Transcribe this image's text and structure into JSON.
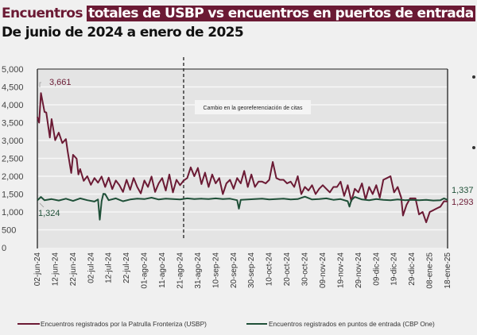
{
  "header": {
    "title_part1": "Encuentros",
    "title_part2": "totales de USBP vs encuentros en puertos de entrada",
    "subtitle": "De junio de 2024 a enero de 2025"
  },
  "colors": {
    "usbp": "#6b1a34",
    "cbp_one": "#1f5038",
    "highlight": "#6b1a34",
    "plot_bg": "#e4e4e4"
  },
  "chart_data": {
    "type": "line",
    "title": "Encuentros totales de USBP vs encuentros en puertos de entrada",
    "subtitle": "De junio de 2024 a enero de 2025",
    "ylim": [
      0,
      5000
    ],
    "yticks": [
      "0",
      "500",
      "1,000",
      "1,500",
      "2,000",
      "2,500",
      "3,000",
      "3,500",
      "4,000",
      "4,500",
      "5,000"
    ],
    "xlim": [
      "2024-06-02",
      "2025-01-18"
    ],
    "xticks": [
      "02-jun-24",
      "12-jun-24",
      "22-jun-24",
      "02-jul-24",
      "12-jul-24",
      "22-jul-24",
      "01-ago-24",
      "11-ago-24",
      "21-ago-24",
      "31-ago-24",
      "10-sep-24",
      "20-sep-24",
      "30-sep-24",
      "10-oct-24",
      "20-oct-24",
      "30-oct-24",
      "09-nov-24",
      "19-nov-24",
      "29-nov-24",
      "09-dic-24",
      "19-dic-24",
      "29-dic-24",
      "08-ene-25",
      "18-ene-25"
    ],
    "grid": true,
    "legend_position": "bottom",
    "annotation": {
      "text": "Cambio en la georeferenciación de citas",
      "date": "2024-08-23"
    },
    "data_labels": {
      "usbp_start": "3,661",
      "cbp_start": "1,324",
      "cbp_end": "1,337",
      "usbp_end": "1,293"
    },
    "series": [
      {
        "name": "Encuentros registrados por la Patrulla Fronteriza (USBP)",
        "points": [
          [
            "2024-06-02",
            3661
          ],
          [
            "2024-06-03",
            3500
          ],
          [
            "2024-06-04",
            4330
          ],
          [
            "2024-06-06",
            3800
          ],
          [
            "2024-06-07",
            3785
          ],
          [
            "2024-06-09",
            3085
          ],
          [
            "2024-06-10",
            3600
          ],
          [
            "2024-06-12",
            3010
          ],
          [
            "2024-06-14",
            3220
          ],
          [
            "2024-06-16",
            2930
          ],
          [
            "2024-06-18",
            3040
          ],
          [
            "2024-06-19",
            2700
          ],
          [
            "2024-06-21",
            2090
          ],
          [
            "2024-06-22",
            2600
          ],
          [
            "2024-06-24",
            2490
          ],
          [
            "2024-06-25",
            2050
          ],
          [
            "2024-06-26",
            2200
          ],
          [
            "2024-06-28",
            1870
          ],
          [
            "2024-06-30",
            2000
          ],
          [
            "2024-07-02",
            1760
          ],
          [
            "2024-07-04",
            1950
          ],
          [
            "2024-07-06",
            1820
          ],
          [
            "2024-07-08",
            1990
          ],
          [
            "2024-07-10",
            1700
          ],
          [
            "2024-07-12",
            1960
          ],
          [
            "2024-07-14",
            1640
          ],
          [
            "2024-07-16",
            1880
          ],
          [
            "2024-07-18",
            1750
          ],
          [
            "2024-07-20",
            1560
          ],
          [
            "2024-07-22",
            1900
          ],
          [
            "2024-07-24",
            1620
          ],
          [
            "2024-07-26",
            1950
          ],
          [
            "2024-07-28",
            1700
          ],
          [
            "2024-07-30",
            1520
          ],
          [
            "2024-08-01",
            1880
          ],
          [
            "2024-08-03",
            1700
          ],
          [
            "2024-08-05",
            1990
          ],
          [
            "2024-08-07",
            1560
          ],
          [
            "2024-08-09",
            1800
          ],
          [
            "2024-08-11",
            1950
          ],
          [
            "2024-08-13",
            1600
          ],
          [
            "2024-08-15",
            2050
          ],
          [
            "2024-08-17",
            1550
          ],
          [
            "2024-08-19",
            1900
          ],
          [
            "2024-08-21",
            1750
          ],
          [
            "2024-08-23",
            1880
          ],
          [
            "2024-08-25",
            1950
          ],
          [
            "2024-08-27",
            2250
          ],
          [
            "2024-08-29",
            2000
          ],
          [
            "2024-08-31",
            2230
          ],
          [
            "2024-09-02",
            1780
          ],
          [
            "2024-09-04",
            2100
          ],
          [
            "2024-09-06",
            1700
          ],
          [
            "2024-09-08",
            2050
          ],
          [
            "2024-09-10",
            1800
          ],
          [
            "2024-09-12",
            1950
          ],
          [
            "2024-09-14",
            1500
          ],
          [
            "2024-09-16",
            1800
          ],
          [
            "2024-09-18",
            1900
          ],
          [
            "2024-09-20",
            1650
          ],
          [
            "2024-09-22",
            1950
          ],
          [
            "2024-09-24",
            1800
          ],
          [
            "2024-09-26",
            2150
          ],
          [
            "2024-09-28",
            1700
          ],
          [
            "2024-09-30",
            2050
          ],
          [
            "2024-10-02",
            1700
          ],
          [
            "2024-10-04",
            1850
          ],
          [
            "2024-10-06",
            1850
          ],
          [
            "2024-10-08",
            1800
          ],
          [
            "2024-10-10",
            1900
          ],
          [
            "2024-10-12",
            2400
          ],
          [
            "2024-10-14",
            1950
          ],
          [
            "2024-10-16",
            1900
          ],
          [
            "2024-10-18",
            1900
          ],
          [
            "2024-10-20",
            1800
          ],
          [
            "2024-10-22",
            1850
          ],
          [
            "2024-10-24",
            1700
          ],
          [
            "2024-10-26",
            2000
          ],
          [
            "2024-10-28",
            1500
          ],
          [
            "2024-10-30",
            1700
          ],
          [
            "2024-11-01",
            1600
          ],
          [
            "2024-11-03",
            1750
          ],
          [
            "2024-11-05",
            1500
          ],
          [
            "2024-11-07",
            1650
          ],
          [
            "2024-11-09",
            1750
          ],
          [
            "2024-11-11",
            1650
          ],
          [
            "2024-11-13",
            1550
          ],
          [
            "2024-11-15",
            1700
          ],
          [
            "2024-11-17",
            1700
          ],
          [
            "2024-11-19",
            1850
          ],
          [
            "2024-11-21",
            1450
          ],
          [
            "2024-11-23",
            1750
          ],
          [
            "2024-11-25",
            1300
          ],
          [
            "2024-11-27",
            1650
          ],
          [
            "2024-11-29",
            1550
          ],
          [
            "2024-12-01",
            1800
          ],
          [
            "2024-12-03",
            1350
          ],
          [
            "2024-12-05",
            1700
          ],
          [
            "2024-12-07",
            1500
          ],
          [
            "2024-12-09",
            1750
          ],
          [
            "2024-12-11",
            1400
          ],
          [
            "2024-12-13",
            1900
          ],
          [
            "2024-12-15",
            1950
          ],
          [
            "2024-12-17",
            2000
          ],
          [
            "2024-12-19",
            1550
          ],
          [
            "2024-12-21",
            1700
          ],
          [
            "2024-12-23",
            1400
          ],
          [
            "2024-12-24",
            900
          ],
          [
            "2024-12-26",
            1200
          ],
          [
            "2024-12-28",
            1380
          ],
          [
            "2024-12-31",
            1380
          ],
          [
            "2025-01-02",
            930
          ],
          [
            "2025-01-04",
            1000
          ],
          [
            "2025-01-06",
            710
          ],
          [
            "2025-01-08",
            1000
          ],
          [
            "2025-01-10",
            1050
          ],
          [
            "2025-01-12",
            1100
          ],
          [
            "2025-01-14",
            1150
          ],
          [
            "2025-01-16",
            1300
          ],
          [
            "2025-01-18",
            1293
          ]
        ]
      },
      {
        "name": "Encuentros registrados en puntos de entrada (CBP One)",
        "points": [
          [
            "2024-06-02",
            1324
          ],
          [
            "2024-06-04",
            1420
          ],
          [
            "2024-06-06",
            1330
          ],
          [
            "2024-06-10",
            1360
          ],
          [
            "2024-06-14",
            1320
          ],
          [
            "2024-06-18",
            1370
          ],
          [
            "2024-06-22",
            1310
          ],
          [
            "2024-06-26",
            1380
          ],
          [
            "2024-06-30",
            1330
          ],
          [
            "2024-07-04",
            1290
          ],
          [
            "2024-07-06",
            1350
          ],
          [
            "2024-07-07",
            785
          ],
          [
            "2024-07-08",
            1300
          ],
          [
            "2024-07-09",
            1510
          ],
          [
            "2024-07-10",
            1500
          ],
          [
            "2024-07-12",
            1330
          ],
          [
            "2024-07-16",
            1380
          ],
          [
            "2024-07-20",
            1300
          ],
          [
            "2024-07-24",
            1350
          ],
          [
            "2024-07-28",
            1370
          ],
          [
            "2024-08-01",
            1360
          ],
          [
            "2024-08-05",
            1400
          ],
          [
            "2024-08-09",
            1350
          ],
          [
            "2024-08-13",
            1370
          ],
          [
            "2024-08-17",
            1360
          ],
          [
            "2024-08-21",
            1350
          ],
          [
            "2024-08-25",
            1380
          ],
          [
            "2024-08-29",
            1360
          ],
          [
            "2024-09-02",
            1370
          ],
          [
            "2024-09-06",
            1360
          ],
          [
            "2024-09-10",
            1380
          ],
          [
            "2024-09-14",
            1360
          ],
          [
            "2024-09-18",
            1370
          ],
          [
            "2024-09-22",
            1330
          ],
          [
            "2024-09-23",
            1090
          ],
          [
            "2024-09-24",
            1340
          ],
          [
            "2024-09-28",
            1350
          ],
          [
            "2024-10-02",
            1360
          ],
          [
            "2024-10-06",
            1370
          ],
          [
            "2024-10-10",
            1350
          ],
          [
            "2024-10-14",
            1360
          ],
          [
            "2024-10-18",
            1370
          ],
          [
            "2024-10-22",
            1350
          ],
          [
            "2024-10-26",
            1360
          ],
          [
            "2024-10-30",
            1430
          ],
          [
            "2024-11-03",
            1350
          ],
          [
            "2024-11-07",
            1360
          ],
          [
            "2024-11-11",
            1380
          ],
          [
            "2024-11-15",
            1340
          ],
          [
            "2024-11-19",
            1360
          ],
          [
            "2024-11-23",
            1300
          ],
          [
            "2024-11-24",
            1150
          ],
          [
            "2024-11-25",
            1330
          ],
          [
            "2024-11-27",
            1420
          ],
          [
            "2024-12-01",
            1350
          ],
          [
            "2024-12-05",
            1330
          ],
          [
            "2024-12-09",
            1360
          ],
          [
            "2024-12-13",
            1340
          ],
          [
            "2024-12-17",
            1330
          ],
          [
            "2024-12-21",
            1350
          ],
          [
            "2024-12-25",
            1330
          ],
          [
            "2024-12-29",
            1340
          ],
          [
            "2025-01-02",
            1330
          ],
          [
            "2025-01-06",
            1340
          ],
          [
            "2025-01-10",
            1320
          ],
          [
            "2025-01-14",
            1330
          ],
          [
            "2025-01-16",
            1380
          ],
          [
            "2025-01-18",
            1337
          ]
        ]
      }
    ]
  }
}
